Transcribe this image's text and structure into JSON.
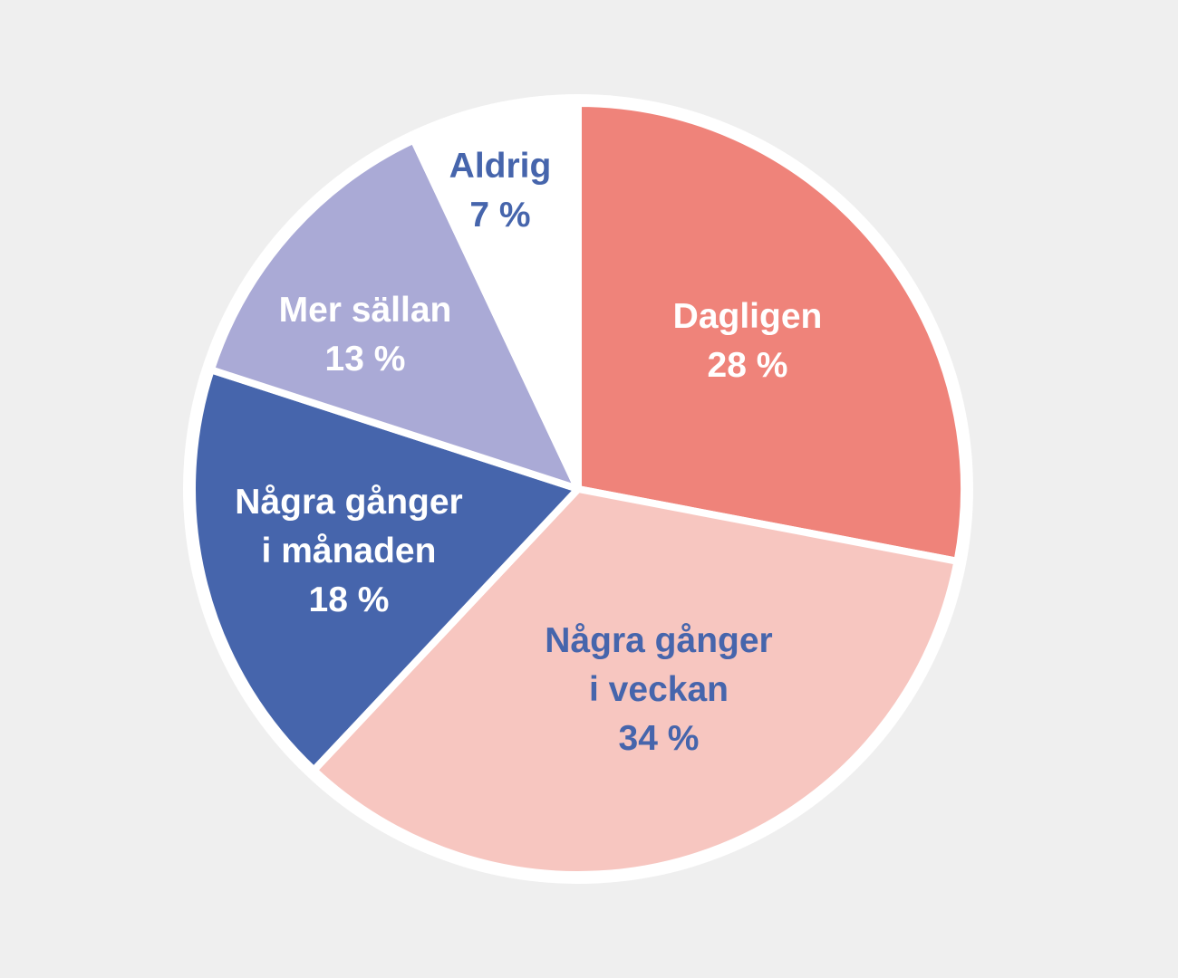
{
  "chart_data": {
    "type": "pie",
    "start_angle": "12 o'clock",
    "direction": "clockwise",
    "unit": "%",
    "slices": [
      {
        "label_lines": [
          "Dagligen"
        ],
        "value": 28,
        "value_label": "28 %",
        "color": "#ef837a",
        "text_color": "#ffffff"
      },
      {
        "label_lines": [
          "Några gånger",
          "i veckan"
        ],
        "value": 34,
        "value_label": "34 %",
        "color": "#f7c6c0",
        "text_color": "#4665ac"
      },
      {
        "label_lines": [
          "Några gånger",
          "i månaden"
        ],
        "value": 18,
        "value_label": "18 %",
        "color": "#4665ac",
        "text_color": "#ffffff"
      },
      {
        "label_lines": [
          "Mer sällan"
        ],
        "value": 13,
        "value_label": "13 %",
        "color": "#aaaad6",
        "text_color": "#ffffff"
      },
      {
        "label_lines": [
          "Aldrig"
        ],
        "value": 7,
        "value_label": "7 %",
        "color": "#ffffff",
        "text_color": "#4665ac"
      }
    ],
    "background": "#efefef",
    "legend": "none"
  }
}
